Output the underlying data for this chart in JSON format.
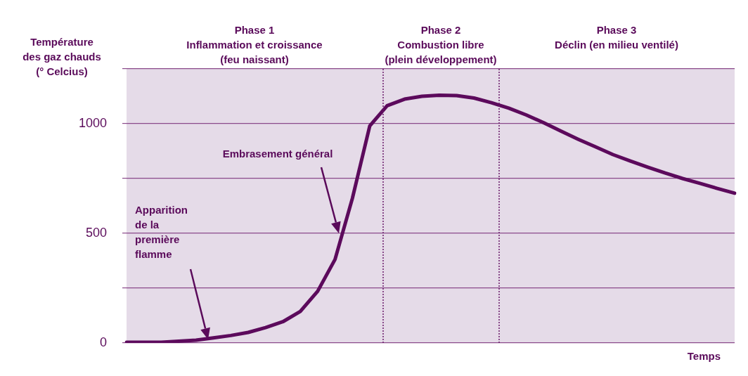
{
  "chart_data": {
    "type": "line",
    "ylabel": "Température\ndes gaz chauds\n(° Celcius)",
    "xlabel": "Temps",
    "ylim": [
      0,
      1250
    ],
    "yticks": [
      0,
      {
        "value": 250,
        "label": null
      },
      500,
      {
        "value": 750,
        "label": null
      },
      1000,
      {
        "value": 1250,
        "label": null
      }
    ],
    "tick_labels": "y",
    "grid": "y",
    "line_style": "solid",
    "categories": [
      null,
      null,
      null,
      null,
      null,
      null,
      null,
      null,
      null,
      null,
      null,
      null,
      null,
      null,
      null,
      null,
      null,
      null,
      null,
      null,
      null,
      null,
      null,
      null,
      null,
      null,
      null,
      null,
      null,
      null,
      null,
      null,
      null,
      null,
      null,
      null
    ],
    "series": [
      {
        "color": "#5c0a5c",
        "values": [
          3,
          3,
          3,
          8,
          13,
          23,
          34,
          48,
          70,
          97,
          144,
          236,
          381,
          660,
          990,
          1082,
          1112,
          1125,
          1130,
          1128,
          1117,
          1096,
          1071,
          1040,
          1005,
          966,
          929,
          894,
          859,
          830,
          802,
          775,
          750,
          728,
          705,
          683
        ]
      }
    ],
    "annotations": [
      "Phase 1\nInflammation et croissance\n(feu naissant)",
      "Phase 2\nCombustion libre\n(plein développement)",
      "Phase 3\nDéclin (en milieu ventilé)",
      "Embrasement général",
      "Apparition\nde la\npremière\nflamme"
    ]
  }
}
